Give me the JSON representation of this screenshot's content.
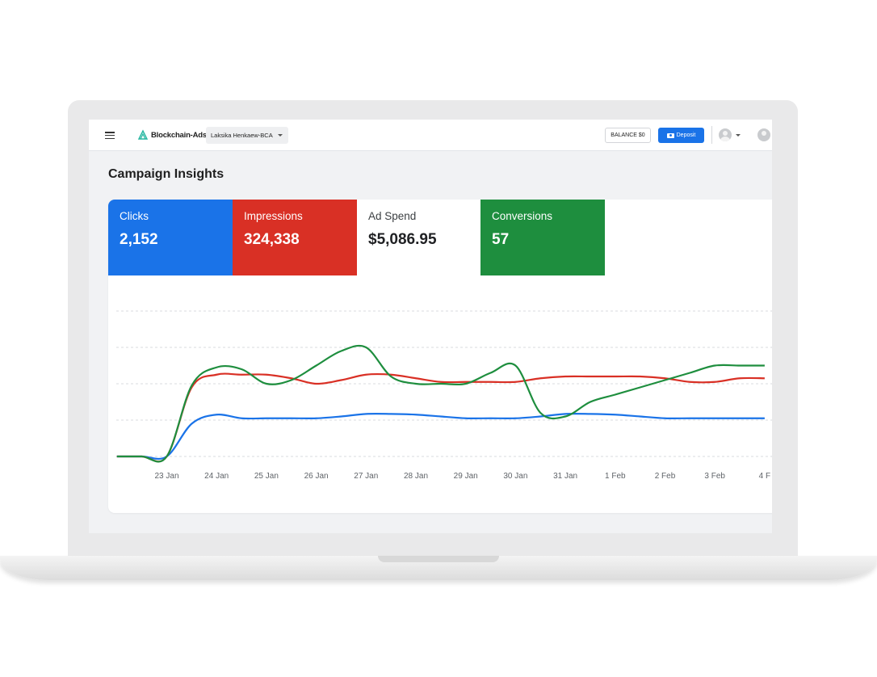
{
  "topbar": {
    "brand": "Blockchain-Ads",
    "account": "Laksika Henkaew-BCA",
    "balance": "BALANCE $0",
    "deposit": "Deposit"
  },
  "page": {
    "title": "Campaign Insights"
  },
  "metrics": {
    "clicks": {
      "label": "Clicks",
      "value": "2,152",
      "color": "#1a73e8"
    },
    "impressions": {
      "label": "Impressions",
      "value": "324,338",
      "color": "#d93025"
    },
    "ad_spend": {
      "label": "Ad Spend",
      "value": "$5,086.95",
      "color": "#ffffff"
    },
    "conversions": {
      "label": "Conversions",
      "value": "57",
      "color": "#1e8e3e"
    }
  },
  "icons": [
    "menu-icon",
    "logo-icon",
    "chevron-down-icon",
    "wallet-icon",
    "avatar-icon"
  ],
  "chart_data": {
    "type": "line",
    "title": "",
    "xlabel": "",
    "ylabel": "",
    "grid": true,
    "legend": "none",
    "x_labels": [
      "23 Jan",
      "24 Jan",
      "25 Jan",
      "26 Jan",
      "27 Jan",
      "28 Jan",
      "29 Jan",
      "30 Jan",
      "31 Jan",
      "1 Feb",
      "2 Feb",
      "3 Feb",
      "4 F"
    ],
    "x": [
      -1,
      -0.5,
      0,
      0.5,
      1,
      1.5,
      2,
      2.5,
      3,
      3.5,
      4,
      4.5,
      5,
      5.5,
      6,
      6.5,
      7,
      7.5,
      8,
      8.5,
      9,
      9.5,
      10,
      10.5,
      11,
      11.5,
      12
    ],
    "ylim": [
      0,
      4
    ],
    "series": [
      {
        "color": "#1a73e8",
        "values": [
          0,
          0,
          0,
          0.9,
          1.15,
          1.05,
          1.05,
          1.05,
          1.05,
          1.1,
          1.17,
          1.17,
          1.15,
          1.1,
          1.05,
          1.05,
          1.05,
          1.1,
          1.17,
          1.17,
          1.15,
          1.1,
          1.05,
          1.05,
          1.05,
          1.05,
          1.05
        ]
      },
      {
        "color": "#d93025",
        "values": [
          0,
          0,
          0,
          1.9,
          2.25,
          2.25,
          2.25,
          2.15,
          2.0,
          2.1,
          2.25,
          2.25,
          2.15,
          2.05,
          2.05,
          2.05,
          2.05,
          2.15,
          2.2,
          2.2,
          2.2,
          2.2,
          2.15,
          2.05,
          2.05,
          2.15,
          2.15
        ]
      },
      {
        "color": "#1e8e3e",
        "values": [
          0,
          0,
          0,
          1.95,
          2.45,
          2.4,
          2.0,
          2.1,
          2.5,
          2.9,
          3.0,
          2.2,
          2.0,
          2.0,
          2.0,
          2.3,
          2.5,
          1.2,
          1.1,
          1.5,
          1.7,
          1.9,
          2.1,
          2.3,
          2.5,
          2.5,
          2.5
        ]
      }
    ]
  }
}
